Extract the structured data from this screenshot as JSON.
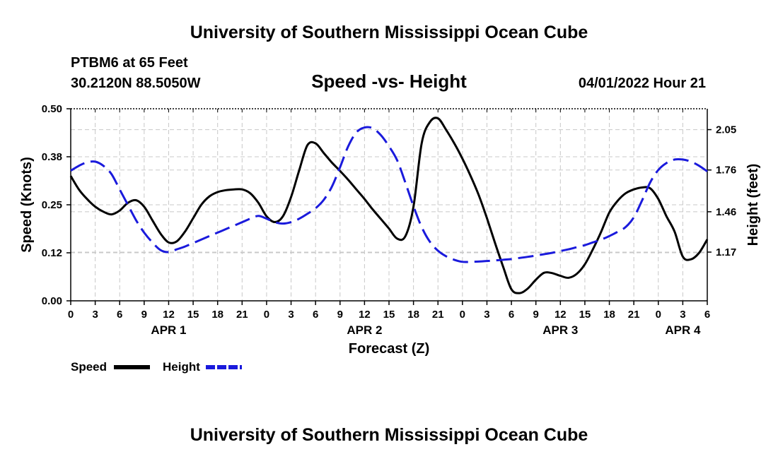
{
  "header": {
    "title_top": "University of Southern Mississippi Ocean Cube",
    "station": "PTBM6 at 65 Feet",
    "coords": "30.2120N  88.5050W",
    "subtitle": "Speed -vs- Height",
    "datetime": "04/01/2022 Hour 21",
    "title_bottom": "University of Southern Mississippi Ocean Cube"
  },
  "legend": {
    "speed": "Speed",
    "height": "Height"
  },
  "colors": {
    "speed": "#000000",
    "height": "#1a1adc"
  },
  "chart_data": {
    "type": "line",
    "title": "Speed -vs- Height",
    "xlabel": "Forecast (Z)",
    "ylabel": "Speed (Knots)",
    "y2label": "Height (feet)",
    "xlim": [
      0,
      78
    ],
    "ylim": [
      0,
      0.5
    ],
    "y2lim": [
      0.82,
      2.2
    ],
    "x_tick_positions": [
      0,
      3,
      6,
      9,
      12,
      15,
      18,
      21,
      24,
      27,
      30,
      33,
      36,
      39,
      42,
      45,
      48,
      51,
      54,
      57,
      60,
      63,
      66,
      69,
      72,
      75,
      78
    ],
    "x_tick_labels": [
      "0",
      "3",
      "6",
      "9",
      "12",
      "15",
      "18",
      "21",
      "0",
      "3",
      "6",
      "9",
      "12",
      "15",
      "18",
      "21",
      "0",
      "3",
      "6",
      "9",
      "12",
      "15",
      "18",
      "21",
      "0",
      "3",
      "6"
    ],
    "day_labels": [
      {
        "label": "APR 1",
        "x": 12
      },
      {
        "label": "APR 2",
        "x": 36
      },
      {
        "label": "APR 3",
        "x": 60
      },
      {
        "label": "APR 4",
        "x": 75
      }
    ],
    "y_ticks": [
      0.0,
      0.125,
      0.25,
      0.375,
      0.5
    ],
    "y_tick_labels": [
      "0.00",
      "0.12",
      "0.25",
      "0.38",
      "0.50"
    ],
    "y2_ticks": [
      1.17,
      1.46,
      1.76,
      2.05
    ],
    "y2_tick_labels": [
      "1.17",
      "1.46",
      "1.76",
      "2.05"
    ],
    "series": [
      {
        "name": "Speed",
        "axis": "left",
        "x": [
          0,
          1,
          2,
          3,
          4,
          5,
          6,
          7,
          8,
          9,
          10,
          11,
          12,
          13,
          14,
          15,
          16,
          17,
          18,
          19,
          20,
          21,
          22,
          23,
          24,
          25,
          26,
          27,
          28,
          29,
          30,
          31,
          32,
          33,
          34,
          35,
          36,
          37,
          38,
          39,
          40,
          41,
          42,
          43,
          44,
          45,
          46,
          47,
          48,
          49,
          50,
          51,
          52,
          53,
          54,
          55,
          56,
          57,
          58,
          59,
          60,
          61,
          62,
          63,
          64,
          65,
          66,
          67,
          68,
          69,
          70,
          71,
          72,
          73,
          74,
          75,
          76,
          77,
          78
        ],
        "values": [
          0.325,
          0.29,
          0.265,
          0.245,
          0.232,
          0.225,
          0.235,
          0.255,
          0.262,
          0.245,
          0.21,
          0.175,
          0.152,
          0.155,
          0.18,
          0.215,
          0.25,
          0.272,
          0.283,
          0.288,
          0.29,
          0.29,
          0.28,
          0.255,
          0.22,
          0.205,
          0.22,
          0.27,
          0.34,
          0.405,
          0.41,
          0.385,
          0.36,
          0.338,
          0.315,
          0.29,
          0.265,
          0.238,
          0.213,
          0.188,
          0.162,
          0.168,
          0.245,
          0.41,
          0.465,
          0.475,
          0.445,
          0.41,
          0.37,
          0.325,
          0.275,
          0.215,
          0.15,
          0.088,
          0.03,
          0.02,
          0.032,
          0.055,
          0.073,
          0.072,
          0.065,
          0.06,
          0.07,
          0.095,
          0.135,
          0.18,
          0.23,
          0.26,
          0.28,
          0.29,
          0.295,
          0.293,
          0.265,
          0.22,
          0.18,
          0.115,
          0.108,
          0.125,
          0.16
        ]
      },
      {
        "name": "Height",
        "axis": "right",
        "x": [
          0,
          1,
          2,
          3,
          4,
          5,
          6,
          7,
          8,
          9,
          10,
          11,
          12,
          13,
          14,
          15,
          16,
          17,
          18,
          19,
          20,
          21,
          22,
          23,
          24,
          25,
          26,
          27,
          28,
          29,
          30,
          31,
          32,
          33,
          34,
          35,
          36,
          37,
          38,
          39,
          40,
          41,
          42,
          43,
          44,
          45,
          46,
          47,
          48,
          49,
          50,
          51,
          52,
          53,
          54,
          55,
          56,
          57,
          58,
          59,
          60,
          61,
          62,
          63,
          64,
          65,
          66,
          67,
          68,
          69,
          70,
          71,
          72,
          73,
          74,
          75,
          76,
          77,
          78
        ],
        "values": [
          1.755,
          1.79,
          1.815,
          1.82,
          1.79,
          1.73,
          1.62,
          1.51,
          1.4,
          1.31,
          1.24,
          1.185,
          1.17,
          1.19,
          1.21,
          1.235,
          1.26,
          1.285,
          1.31,
          1.335,
          1.36,
          1.385,
          1.41,
          1.43,
          1.41,
          1.385,
          1.375,
          1.385,
          1.41,
          1.445,
          1.485,
          1.545,
          1.64,
          1.78,
          1.93,
          2.03,
          2.065,
          2.06,
          2.01,
          1.93,
          1.83,
          1.67,
          1.5,
          1.35,
          1.245,
          1.18,
          1.14,
          1.115,
          1.1,
          1.1,
          1.102,
          1.106,
          1.11,
          1.115,
          1.12,
          1.128,
          1.136,
          1.145,
          1.155,
          1.165,
          1.178,
          1.19,
          1.205,
          1.22,
          1.24,
          1.26,
          1.285,
          1.315,
          1.35,
          1.42,
          1.54,
          1.67,
          1.76,
          1.81,
          1.835,
          1.835,
          1.82,
          1.79,
          1.75
        ]
      }
    ]
  }
}
